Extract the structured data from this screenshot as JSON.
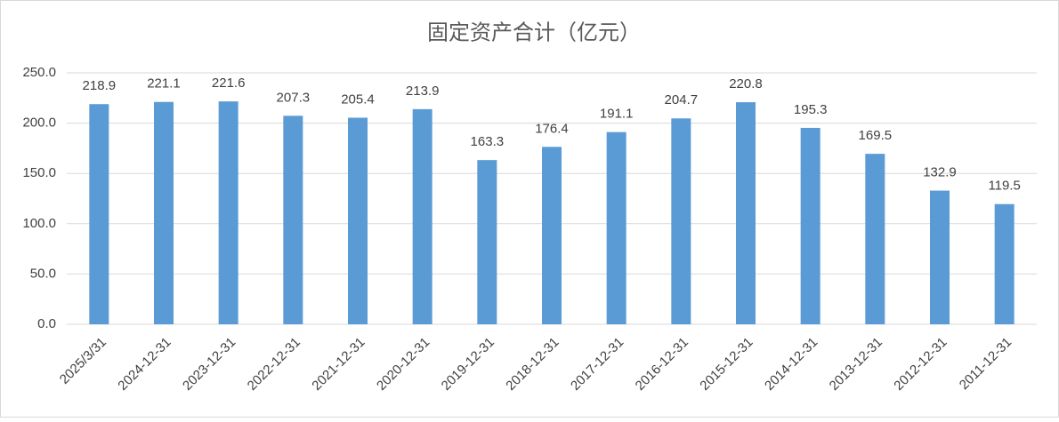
{
  "chart_data": {
    "type": "bar",
    "title": "固定资产合计（亿元）",
    "categories": [
      "2025/3/31",
      "2024-12-31",
      "2023-12-31",
      "2022-12-31",
      "2021-12-31",
      "2020-12-31",
      "2019-12-31",
      "2018-12-31",
      "2017-12-31",
      "2016-12-31",
      "2015-12-31",
      "2014-12-31",
      "2013-12-31",
      "2012-12-31",
      "2011-12-31"
    ],
    "values": [
      218.9,
      221.1,
      221.6,
      207.3,
      205.4,
      213.9,
      163.3,
      176.4,
      191.1,
      204.7,
      220.8,
      195.3,
      169.5,
      132.9,
      119.5
    ],
    "color": "#5b9bd5",
    "ylim": [
      0,
      250
    ],
    "yticks": [
      {
        "value": 0,
        "label": "0.0"
      },
      {
        "value": 50,
        "label": "50.0"
      },
      {
        "value": 100,
        "label": "100.0"
      },
      {
        "value": 150,
        "label": "150.0"
      },
      {
        "value": 200,
        "label": "200.0"
      },
      {
        "value": 250,
        "label": "250.0"
      }
    ],
    "grid": true
  }
}
